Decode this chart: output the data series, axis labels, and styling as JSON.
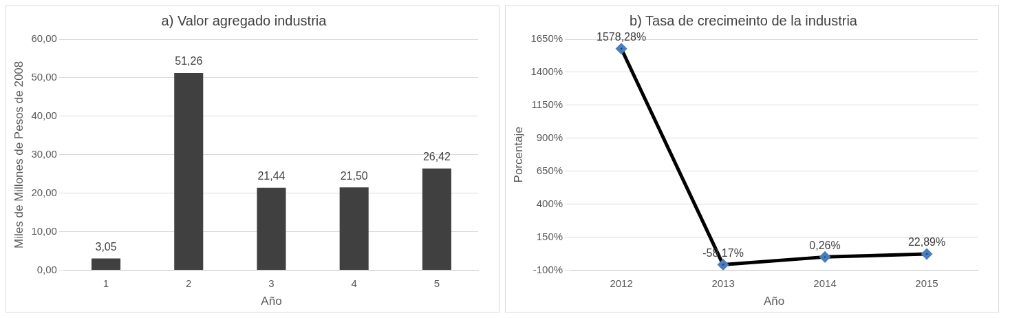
{
  "chart_data": [
    {
      "type": "bar",
      "title": "a) Valor agregado industria",
      "xlabel": "Año",
      "ylabel": "Miles de Millones de Pesos de 2008",
      "categories": [
        "1",
        "2",
        "3",
        "4",
        "5"
      ],
      "values": [
        3.05,
        51.26,
        21.44,
        21.5,
        26.42
      ],
      "color": "#404040",
      "value_labels": [
        "3,05",
        "51,26",
        "21,44",
        "21,50",
        "26,42"
      ],
      "ylim": [
        0,
        60
      ],
      "yticks": [
        {
          "value": 0,
          "label": "0,00"
        },
        {
          "value": 10,
          "label": "10,00"
        },
        {
          "value": 20,
          "label": "20,00"
        },
        {
          "value": 30,
          "label": "30,00"
        },
        {
          "value": 40,
          "label": "40,00"
        },
        {
          "value": 50,
          "label": "50,00"
        },
        {
          "value": 60,
          "label": "60,00"
        }
      ],
      "grid": "y",
      "legend": false
    },
    {
      "type": "line",
      "title": "b) Tasa de crecimeinto de la industria",
      "xlabel": "Año",
      "ylabel": "Porcentaje",
      "categories": [
        "2012",
        "2013",
        "2014",
        "2015"
      ],
      "values": [
        1578.28,
        -58.17,
        0.26,
        22.89
      ],
      "color": "#000000",
      "value_labels": [
        "1578,28%",
        "-58,17%",
        "0,26%",
        "22,89%"
      ],
      "marker": "diamond",
      "ylim": [
        -100,
        1650
      ],
      "yticks": [
        {
          "value": -100,
          "label": "-100%"
        },
        {
          "value": 150,
          "label": "150%"
        },
        {
          "value": 400,
          "label": "400%"
        },
        {
          "value": 650,
          "label": "650%"
        },
        {
          "value": 900,
          "label": "900%"
        },
        {
          "value": 1150,
          "label": "1150%"
        },
        {
          "value": 1400,
          "label": "1400%"
        },
        {
          "value": 1650,
          "label": "1650%"
        }
      ],
      "grid": "y",
      "legend": false
    }
  ]
}
